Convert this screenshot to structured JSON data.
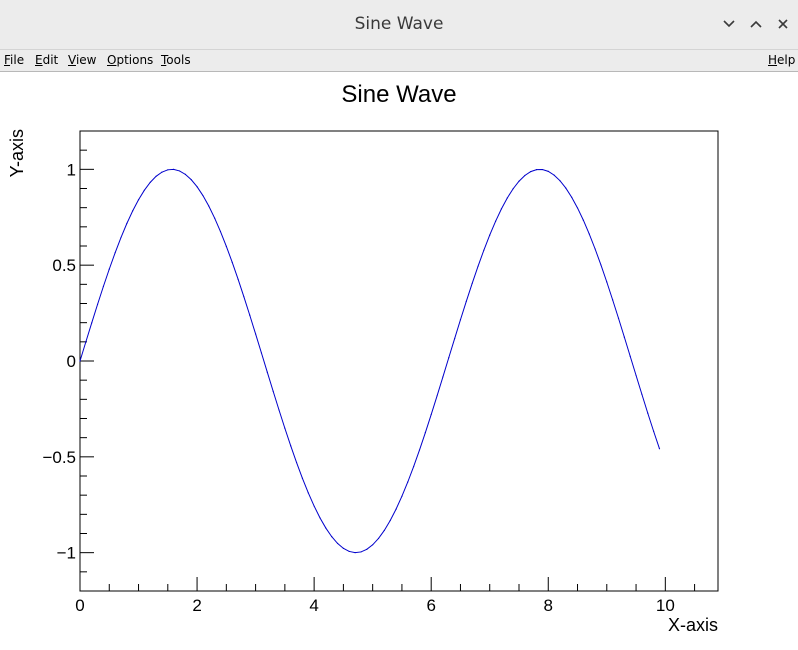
{
  "window": {
    "title": "Sine Wave"
  },
  "window_controls": {
    "minimize_icon": "chevron-down-icon",
    "maximize_icon": "chevron-up-icon",
    "close_icon": "close-icon"
  },
  "menubar": {
    "items": [
      {
        "mnemonic": "F",
        "rest": "ile"
      },
      {
        "mnemonic": "E",
        "rest": "dit"
      },
      {
        "mnemonic": "V",
        "rest": "iew"
      },
      {
        "mnemonic": "O",
        "rest": "ptions"
      },
      {
        "mnemonic": "T",
        "rest": "ools"
      }
    ],
    "help": {
      "mnemonic": "H",
      "rest": "elp"
    }
  },
  "chart_data": {
    "type": "line",
    "title": "Sine Wave",
    "xlabel": "X-axis",
    "ylabel": "Y-axis",
    "xlim": [
      0,
      10.9
    ],
    "ylim": [
      -1.2,
      1.2
    ],
    "xticks": [
      0,
      2,
      4,
      6,
      8,
      10
    ],
    "xtick_labels": [
      "0",
      "2",
      "4",
      "6",
      "8",
      "10"
    ],
    "yticks": [
      -1,
      -0.5,
      0,
      0.5,
      1
    ],
    "ytick_labels": [
      "−1",
      "−0.5",
      "0",
      "0.5",
      "1"
    ],
    "grid": false,
    "line_color": "#0000cc",
    "series": [
      {
        "x": [
          0.0,
          0.1,
          0.2,
          0.3,
          0.4,
          0.5,
          0.6,
          0.7,
          0.8,
          0.9,
          1.0,
          1.1,
          1.2,
          1.3,
          1.4,
          1.5,
          1.6,
          1.7,
          1.8,
          1.9,
          2.0,
          2.1,
          2.2,
          2.3,
          2.4,
          2.5,
          2.6,
          2.7,
          2.8,
          2.9,
          3.0,
          3.1,
          3.2,
          3.3,
          3.4,
          3.5,
          3.6,
          3.7,
          3.8,
          3.9,
          4.0,
          4.1,
          4.2,
          4.3,
          4.4,
          4.5,
          4.6,
          4.7,
          4.8,
          4.9,
          5.0,
          5.1,
          5.2,
          5.3,
          5.4,
          5.5,
          5.6,
          5.7,
          5.8,
          5.9,
          6.0,
          6.1,
          6.2,
          6.3,
          6.4,
          6.5,
          6.6,
          6.7,
          6.8,
          6.9,
          7.0,
          7.1,
          7.2,
          7.3,
          7.4,
          7.5,
          7.6,
          7.7,
          7.8,
          7.9,
          8.0,
          8.1,
          8.2,
          8.3,
          8.4,
          8.5,
          8.6,
          8.7,
          8.8,
          8.9,
          9.0,
          9.1,
          9.2,
          9.3,
          9.4,
          9.5,
          9.6,
          9.7,
          9.8,
          9.9
        ],
        "y": [
          0.0,
          0.0998,
          0.1987,
          0.2955,
          0.3894,
          0.4794,
          0.5646,
          0.6442,
          0.7174,
          0.7833,
          0.8415,
          0.8912,
          0.932,
          0.9636,
          0.9854,
          0.9975,
          0.9996,
          0.9917,
          0.9738,
          0.9463,
          0.9093,
          0.8632,
          0.8085,
          0.7457,
          0.6755,
          0.5985,
          0.5155,
          0.4274,
          0.335,
          0.2392,
          0.1411,
          0.0416,
          -0.0584,
          -0.1577,
          -0.2555,
          -0.3508,
          -0.4425,
          -0.5298,
          -0.6119,
          -0.6878,
          -0.7568,
          -0.8183,
          -0.8716,
          -0.9162,
          -0.9516,
          -0.9775,
          -0.9937,
          -0.9999,
          -0.9962,
          -0.9825,
          -0.9589,
          -0.9258,
          -0.8835,
          -0.8323,
          -0.7728,
          -0.7055,
          -0.6313,
          -0.5507,
          -0.4646,
          -0.3739,
          -0.2794,
          -0.1822,
          -0.0831,
          0.0168,
          0.1165,
          0.2151,
          0.3115,
          0.4048,
          0.4941,
          0.5784,
          0.657,
          0.729,
          0.7937,
          0.8504,
          0.8987,
          0.938,
          0.968,
          0.9882,
          0.9985,
          0.9989,
          0.9894,
          0.9699,
          0.9407,
          0.9022,
          0.8546,
          0.7985,
          0.7344,
          0.663,
          0.585,
          0.501,
          0.4121,
          0.319,
          0.2229,
          0.1245,
          0.0248,
          -0.0752,
          -0.1743,
          -0.2718,
          -0.3665,
          -0.4575
        ]
      }
    ]
  }
}
